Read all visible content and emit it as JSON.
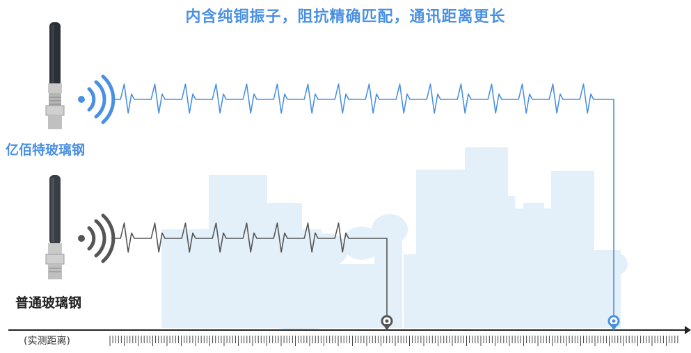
{
  "headline": "内含纯铜振子，阻抗精确匹配，通讯距离更长",
  "products": {
    "premium": {
      "label": "亿佰特玻璃钢",
      "icon": "antenna-icon",
      "signal_icon": "wifi-signal-icon"
    },
    "standard": {
      "label": "普通玻璃钢",
      "icon": "antenna-icon",
      "signal_icon": "wifi-signal-icon"
    }
  },
  "axis": {
    "label": "(实测距离)"
  },
  "colors": {
    "headline": "#4a90e2",
    "premium": "#4a90e2",
    "standard": "#555555",
    "skyline": "#e3f0fa",
    "axis": "#222222"
  }
}
